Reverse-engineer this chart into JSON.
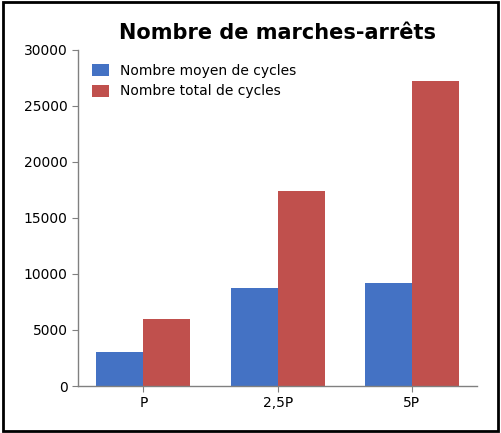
{
  "title": "Nombre de marches-arrêts",
  "categories": [
    "P",
    "2,5P",
    "5P"
  ],
  "series": [
    {
      "label": "Nombre moyen de cycles",
      "color": "#4472C4",
      "values": [
        3000,
        8700,
        9200
      ]
    },
    {
      "label": "Nombre total de cycles",
      "color": "#C0504D",
      "values": [
        6000,
        17400,
        27200
      ]
    }
  ],
  "ylim": [
    0,
    30000
  ],
  "yticks": [
    0,
    5000,
    10000,
    15000,
    20000,
    25000,
    30000
  ],
  "bar_width": 0.35,
  "title_fontsize": 15,
  "tick_fontsize": 10,
  "legend_fontsize": 10,
  "background_color": "#ffffff",
  "spine_color": "#808080",
  "border_color": "#000000"
}
